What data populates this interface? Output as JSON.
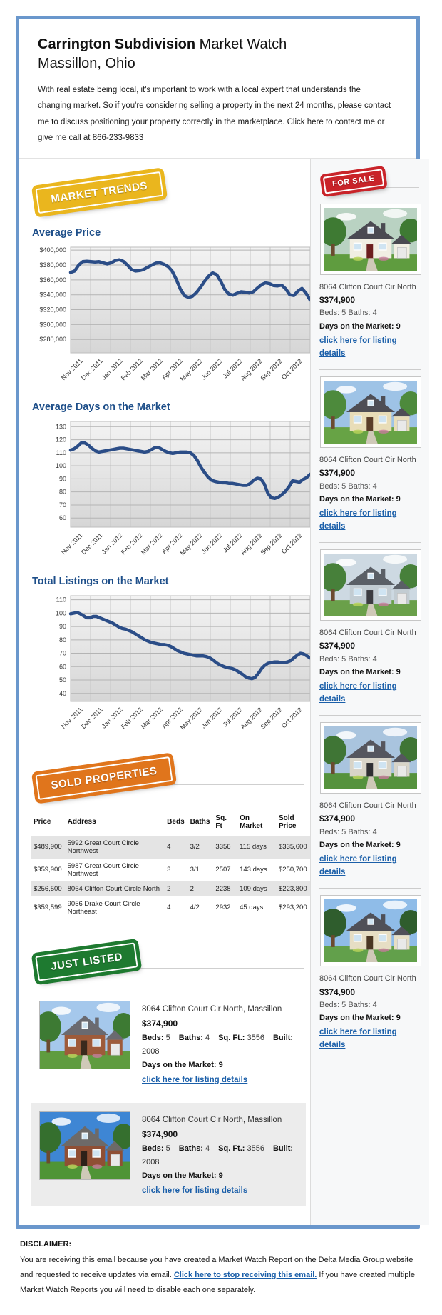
{
  "header": {
    "title_bold": "Carrington Subdivision",
    "title_rest": " Market Watch",
    "subtitle": "Massillon, Ohio",
    "intro": "With real estate being local, it's important to work with a local expert that understands the changing market. So if you're considering selling a property in the next 24 months, please contact me to discuss positioning your property correctly in the marketplace. Click here to contact me or give me call at 866-233-9833"
  },
  "ribbons": {
    "market_trends": "MARKET TRENDS",
    "for_sale": "FOR SALE",
    "sold_properties": "SOLD PROPERTIES",
    "just_listed": "JUST LISTED"
  },
  "colors": {
    "border_blue": "#6a97cc",
    "heading_blue": "#1d4e89",
    "chart_line": "#2b4d87",
    "ribbon_gold": "#eab61e",
    "ribbon_red": "#c92329",
    "ribbon_orange": "#e0751c",
    "ribbon_green": "#1e7a30",
    "link_blue": "#1b5fa9"
  },
  "chart_data": [
    {
      "type": "line",
      "title": "Average Price",
      "x_labels": [
        "Nov 2011",
        "Dec 2011",
        "Jan 2012",
        "Feb 2012",
        "Mar 2012",
        "Apr 2012",
        "May 2012",
        "Jun 2012",
        "Jul 2012",
        "Aug 2012",
        "Sep 2012",
        "Oct 2012"
      ],
      "yticks": [
        "$400,000",
        "$380,000",
        "$360,000",
        "$340,000",
        "$320,000",
        "$300,000",
        "$280,000"
      ],
      "ytick_values": [
        400,
        380,
        360,
        340,
        320,
        300,
        280
      ],
      "unit": "USD thousands",
      "ylim": [
        262,
        404
      ],
      "grid": true,
      "line_color": "#2b4d87",
      "values": [
        370,
        372,
        380,
        384.5,
        385,
        384.5,
        384,
        384.5,
        383,
        381.5,
        383,
        386,
        387,
        385,
        380,
        374,
        372,
        372.5,
        374,
        377,
        380,
        382.5,
        383,
        381,
        378,
        372,
        361,
        348,
        339,
        336.5,
        338,
        343,
        350,
        358,
        365,
        369.5,
        367,
        358,
        347,
        341,
        339.5,
        342,
        344,
        343.5,
        342.5,
        344,
        349,
        353.5,
        356,
        355,
        352.5,
        352,
        353,
        348,
        340,
        339,
        345,
        348.5,
        342,
        333
      ]
    },
    {
      "type": "line",
      "title": "Average Days on the Market",
      "x_labels": [
        "Nov 2011",
        "Dec 2011",
        "Jan 2012",
        "Feb 2012",
        "Mar 2012",
        "Apr 2012",
        "May 2012",
        "Jun 2012",
        "Jul 2012",
        "Aug 2012",
        "Sep 2012",
        "Oct 2012"
      ],
      "yticks": [
        "130",
        "120",
        "110",
        "100",
        "90",
        "80",
        "70",
        "60"
      ],
      "ytick_values": [
        130,
        120,
        110,
        100,
        90,
        80,
        70,
        60
      ],
      "unit": "days",
      "ylim": [
        53,
        134
      ],
      "grid": true,
      "line_color": "#2b4d87",
      "values": [
        112,
        113,
        115,
        117.5,
        117.5,
        116,
        113.5,
        111.5,
        110.5,
        111,
        111.5,
        112,
        112.5,
        113,
        113.5,
        113.5,
        113,
        112.5,
        112,
        111.5,
        111,
        110.5,
        111,
        112.5,
        114,
        114,
        112.5,
        111,
        110,
        109.5,
        110,
        110.5,
        110.5,
        110.5,
        110,
        108,
        104,
        99,
        95,
        91.5,
        89,
        88,
        87.5,
        87,
        87,
        86.5,
        86.5,
        86,
        85.5,
        85,
        85,
        86.5,
        89,
        90.5,
        90,
        86,
        79,
        75.5,
        75,
        76,
        78,
        80.5,
        84,
        88.5,
        88,
        87.5,
        89.5,
        91,
        93.5
      ]
    },
    {
      "type": "line",
      "title": "Total Listings on the Market",
      "x_labels": [
        "Nov 2011",
        "Dec 2011",
        "Jan 2012",
        "Feb 2012",
        "Mar 2012",
        "Apr 2012",
        "May 2012",
        "Jun 2012",
        "Jul 2012",
        "Aug 2012",
        "Sep 2012",
        "Oct 2012"
      ],
      "yticks": [
        "110",
        "100",
        "90",
        "80",
        "70",
        "60",
        "50",
        "40"
      ],
      "ytick_values": [
        110,
        100,
        90,
        80,
        70,
        60,
        50,
        40
      ],
      "unit": "listings",
      "ylim": [
        34,
        113
      ],
      "grid": true,
      "line_color": "#2b4d87",
      "values": [
        99.5,
        100,
        100.5,
        99.5,
        98,
        96.5,
        96.5,
        97.5,
        97.5,
        96.5,
        95.5,
        94.5,
        93.5,
        92.5,
        91,
        89.5,
        88.5,
        88,
        87,
        86,
        84.5,
        83,
        81.5,
        80,
        79,
        78,
        77.5,
        77,
        76.5,
        76.5,
        76,
        75,
        73.5,
        72,
        71,
        70,
        69.5,
        69,
        68.5,
        68,
        68,
        68,
        67.5,
        66.5,
        65,
        63,
        61.5,
        60.5,
        59.5,
        59,
        58.5,
        57.5,
        56,
        54.5,
        52.5,
        51.5,
        51,
        52,
        55,
        58.5,
        61,
        62.5,
        63,
        63.5,
        63.5,
        63,
        63,
        63.5,
        64.5,
        66.5,
        68.5,
        70,
        69.5,
        68,
        66.5
      ]
    }
  ],
  "sidebar": {
    "cards": [
      {
        "address": "8064 Clifton Court Cir North",
        "price": "$374,900",
        "beds": "Beds: 5 Baths: 4",
        "days": "Days on the Market: 9",
        "link": "click here for listing details"
      },
      {
        "address": "8064 Clifton Court Cir North",
        "price": "$374,900",
        "beds": "Beds: 5 Baths: 4",
        "days": "Days on the Market: 9",
        "link": "click here for listing details"
      },
      {
        "address": "8064 Clifton Court Cir North",
        "price": "$374,900",
        "beds": "Beds: 5 Baths: 4",
        "days": "Days on the Market: 9",
        "link": "click here for listing details"
      },
      {
        "address": "8064 Clifton Court Cir North",
        "price": "$374,900",
        "beds": "Beds: 5 Baths: 4",
        "days": "Days on the Market: 9",
        "link": "click here for listing details"
      },
      {
        "address": "8064 Clifton Court Cir North",
        "price": "$374,900",
        "beds": "Beds: 5 Baths: 4",
        "days": "Days on the Market: 9",
        "link": "click here for listing details"
      }
    ]
  },
  "sold_table": {
    "headers": [
      "Price",
      "Address",
      "Beds",
      "Baths",
      "Sq. Ft",
      "On Market",
      "Sold Price"
    ],
    "rows": [
      [
        "$489,900",
        "5992 Great Court Circle Northwest",
        "4",
        "3/2",
        "3356",
        "115 days",
        "$335,600"
      ],
      [
        "$359,900",
        "5987 Great Court Circle Northwest",
        "3",
        "3/1",
        "2507",
        "143 days",
        "$250,700"
      ],
      [
        "$256,500",
        "8064 Clifton Court Circle North",
        "2",
        "2",
        "2238",
        "109 days",
        "$223,800"
      ],
      [
        "$359,599",
        "9056 Drake Court Circle Northeast",
        "4",
        "4/2",
        "2932",
        "45 days",
        "$293,200"
      ]
    ]
  },
  "just_listed": {
    "items": [
      {
        "address": "8064 Clifton Court Cir North, Massillon",
        "price": "$374,900",
        "specs": [
          [
            "Beds:",
            "5"
          ],
          [
            "Baths:",
            "4"
          ],
          [
            "Sq. Ft.:",
            "3556"
          ],
          [
            "Built:",
            "2008"
          ]
        ],
        "days": "Days on the Market: 9",
        "link": "click here for listing details"
      },
      {
        "address": "8064 Clifton Court Cir North, Massillon",
        "price": "$374,900",
        "specs": [
          [
            "Beds:",
            "5"
          ],
          [
            "Baths:",
            "4"
          ],
          [
            "Sq. Ft.:",
            "3556"
          ],
          [
            "Built:",
            "2008"
          ]
        ],
        "days": "Days on the Market: 9",
        "link": "click here for listing details"
      }
    ]
  },
  "disclaimer": {
    "label": "DISCLAIMER:",
    "before": "You are receiving this email because you have created a Market Watch Report on the Delta Media Group website and requested to receive updates via email. ",
    "link": "Click here to stop receiving this email.",
    "after": " If you have created multiple Market Watch Reports you will need to disable each one separately."
  }
}
